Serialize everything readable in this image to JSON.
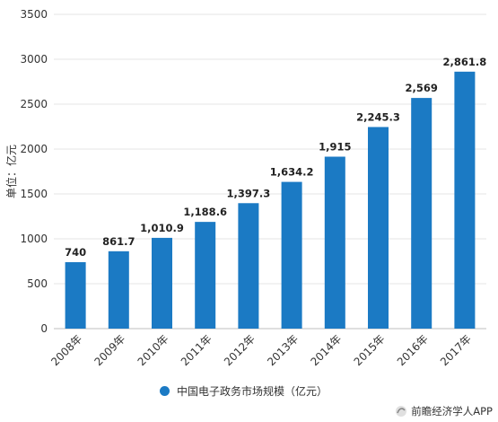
{
  "chart_data": {
    "type": "bar",
    "categories": [
      "2008年",
      "2009年",
      "2010年",
      "2011年",
      "2012年",
      "2013年",
      "2014年",
      "2015年",
      "2016年",
      "2017年"
    ],
    "values": [
      740,
      861.7,
      1010.9,
      1188.6,
      1397.3,
      1634.2,
      1915,
      2245.3,
      2569,
      2861.8
    ],
    "data_labels": [
      "740",
      "861.7",
      "1,010.9",
      "1,188.6",
      "1,397.3",
      "1,634.2",
      "1,915",
      "2,245.3",
      "2,569",
      "2,861.8"
    ],
    "ylabel": "单位：亿元",
    "ylim": [
      0,
      3500
    ],
    "yticks": [
      0,
      500,
      1000,
      1500,
      2000,
      2500,
      3000,
      3500
    ],
    "grid": true,
    "legend_position": "bottom",
    "series": [
      {
        "name": "中国电子政务市场规模（亿元）",
        "color": "#1b7ac4"
      }
    ]
  },
  "source": {
    "text": "前瞻经济学人APP"
  }
}
